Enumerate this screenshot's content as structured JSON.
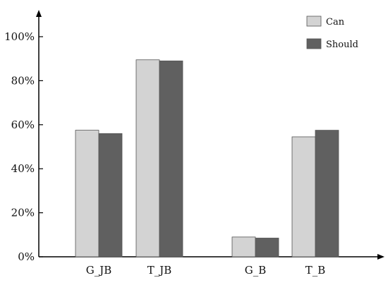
{
  "chart_data": {
    "type": "bar",
    "categories": [
      "G_JB",
      "T_JB",
      "G_B",
      "T_B"
    ],
    "series": [
      {
        "name": "Can",
        "values": [
          57.5,
          89.5,
          9.0,
          54.5
        ],
        "color": "#d3d3d3"
      },
      {
        "name": "Should",
        "values": [
          56.0,
          89.0,
          8.5,
          57.5
        ],
        "color": "#606060"
      }
    ],
    "ylim": [
      0,
      100
    ],
    "yticks": [
      "0%",
      "20%",
      "40%",
      "60%",
      "80%",
      "100%"
    ],
    "ytick_values": [
      0,
      20,
      40,
      60,
      80,
      100
    ],
    "grid": false,
    "legend": "top-right"
  }
}
